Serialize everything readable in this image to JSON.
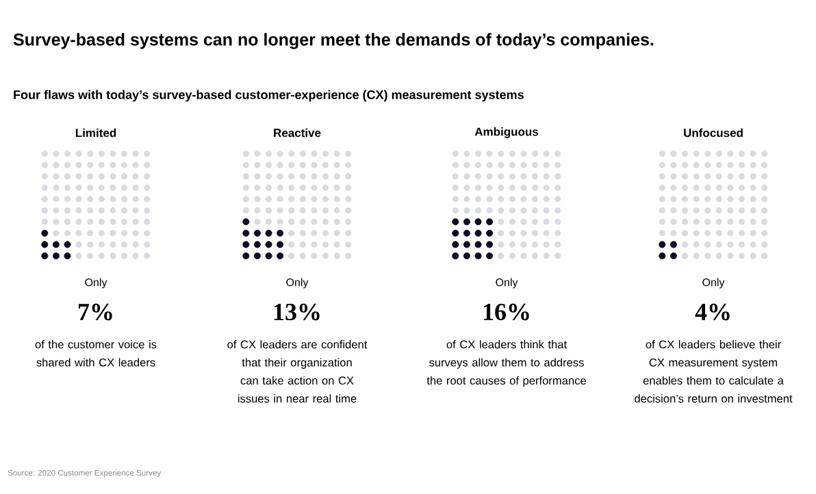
{
  "chart_data": {
    "type": "other",
    "title": "Survey-based systems can no longer meet the demands of today’s companies.",
    "subtitle": "Four flaws with today’s survey-based customer-experience (CX) measurement systems",
    "categories": [
      "Limited",
      "Reactive",
      "Ambiguous",
      "Unfocused"
    ],
    "values": [
      7,
      13,
      16,
      4
    ],
    "value_labels": [
      "7%",
      "13%",
      "16%",
      "4%"
    ],
    "color": "#0b0b22",
    "annotations": [
      {
        "text": "Only",
        "x": "Limited"
      },
      {
        "text": "of the customer voice is shared with CX leaders",
        "x": "Limited"
      },
      {
        "text": "Only",
        "x": "Reactive"
      },
      {
        "text": "of CX leaders are confident that their organization can take action on CX issues in near real time",
        "x": "Reactive"
      },
      {
        "text": "Only",
        "x": "Ambiguous"
      },
      {
        "text": "of CX leaders think that surveys allow them to address the root causes of performance",
        "x": "Ambiguous"
      },
      {
        "text": "Only",
        "x": "Unfocused"
      },
      {
        "text": "of CX leaders believe their CX measurement system enables them to calculate a decision’s return on investment",
        "x": "Unfocused"
      },
      "Source: 2020 Customer Experience Survey"
    ]
  }
}
